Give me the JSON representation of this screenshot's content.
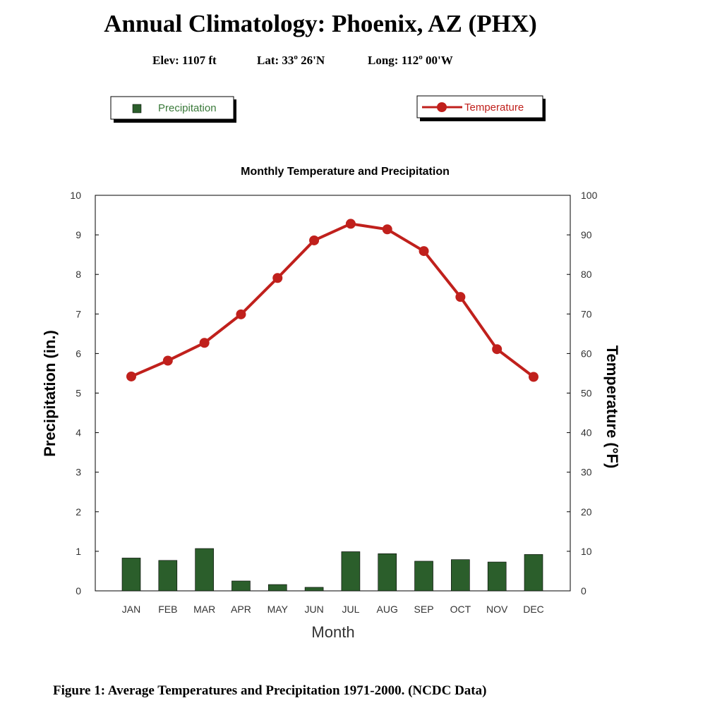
{
  "header": {
    "title": "Annual Climatology: Phoenix, AZ (PHX)",
    "elev": "Elev: 1107 ft",
    "lat": "Lat: 33",
    "lat_rest": " 26'N",
    "long": "Long: 112",
    "long_rest": " 00'W",
    "degree_mark": "o"
  },
  "legend": {
    "precip_label": "Precipitation",
    "temp_label": "Temperature"
  },
  "caption": "Figure 1: Average Temperatures and Precipitation 1971-2000. (NCDC Data)",
  "colors": {
    "precip": "#2b5e2b",
    "temp": "#c0201c",
    "precip_text": "#3a7a3a"
  },
  "chart_data": {
    "type": "bar+line",
    "title": "Monthly Temperature and Precipitation",
    "xlabel": "Month",
    "ylabel_left": "Precipitation (in.)",
    "ylabel_right": "Temperature (°F)",
    "ylim_left": [
      0,
      10
    ],
    "ylim_right": [
      0,
      100
    ],
    "yticks_left": [
      "0",
      "1",
      "2",
      "3",
      "4",
      "5",
      "6",
      "7",
      "8",
      "9",
      "10"
    ],
    "yticks_right": [
      "0",
      "10",
      "20",
      "30",
      "40",
      "50",
      "60",
      "70",
      "80",
      "90",
      "100"
    ],
    "grid": false,
    "categories": [
      "JAN",
      "FEB",
      "MAR",
      "APR",
      "MAY",
      "JUN",
      "JUL",
      "AUG",
      "SEP",
      "OCT",
      "NOV",
      "DEC"
    ],
    "series": [
      {
        "name": "Precipitation",
        "type": "bar",
        "axis": "left",
        "values": [
          0.83,
          0.77,
          1.07,
          0.25,
          0.16,
          0.09,
          0.99,
          0.94,
          0.75,
          0.79,
          0.73,
          0.92
        ]
      },
      {
        "name": "Temperature",
        "type": "line",
        "axis": "right",
        "values": [
          54.2,
          58.2,
          62.7,
          69.9,
          79.1,
          88.6,
          92.8,
          91.4,
          85.9,
          74.3,
          61.1,
          54.1
        ]
      }
    ]
  }
}
